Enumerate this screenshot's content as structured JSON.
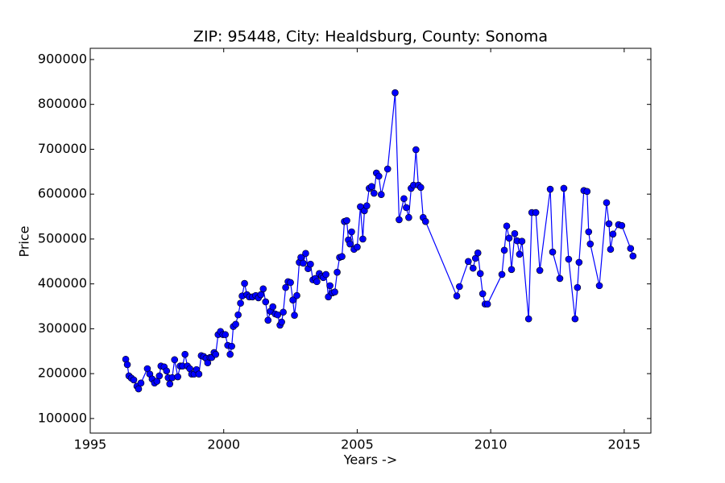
{
  "chart_data": {
    "type": "line",
    "title": "ZIP: 95448, City: Healdsburg, County: Sonoma",
    "x_label": "Years ->",
    "y_label": "Price",
    "xlim": [
      1995,
      2016
    ],
    "ylim": [
      67500,
      925000
    ],
    "xticks": [
      1995,
      2000,
      2005,
      2010,
      2015
    ],
    "yticks": [
      100000,
      200000,
      300000,
      400000,
      500000,
      600000,
      700000,
      800000,
      900000
    ],
    "grid": false,
    "markers": true,
    "x": [
      1996.33,
      1996.39,
      1996.45,
      1996.54,
      1996.63,
      1996.75,
      1996.81,
      1996.9,
      1997.14,
      1997.23,
      1997.32,
      1997.41,
      1997.5,
      1997.59,
      1997.65,
      1997.77,
      1997.86,
      1997.92,
      1997.98,
      1998.07,
      1998.16,
      1998.28,
      1998.37,
      1998.46,
      1998.55,
      1998.64,
      1998.73,
      1998.8,
      1998.89,
      1998.98,
      1999.07,
      1999.16,
      1999.25,
      1999.34,
      1999.4,
      1999.49,
      1999.55,
      1999.64,
      1999.7,
      1999.79,
      1999.88,
      1999.97,
      2000.06,
      2000.15,
      2000.24,
      2000.3,
      2000.36,
      2000.45,
      2000.54,
      2000.63,
      2000.69,
      2000.78,
      2000.87,
      2000.96,
      2001.08,
      2001.2,
      2001.3,
      2001.39,
      2001.48,
      2001.57,
      2001.66,
      2001.75,
      2001.84,
      2001.93,
      2002.02,
      2002.11,
      2002.17,
      2002.23,
      2002.32,
      2002.41,
      2002.5,
      2002.59,
      2002.65,
      2002.74,
      2002.83,
      2002.89,
      2002.98,
      2003.07,
      2003.16,
      2003.25,
      2003.34,
      2003.43,
      2003.49,
      2003.58,
      2003.67,
      2003.73,
      2003.83,
      2003.92,
      2003.98,
      2004.07,
      2004.16,
      2004.25,
      2004.34,
      2004.43,
      2004.52,
      2004.61,
      2004.67,
      2004.73,
      2004.79,
      2004.88,
      2005.0,
      2005.12,
      2005.21,
      2005.27,
      2005.36,
      2005.45,
      2005.54,
      2005.63,
      2005.72,
      2005.81,
      2005.9,
      2006.14,
      2006.42,
      2006.57,
      2006.75,
      2006.84,
      2006.93,
      2007.02,
      2007.11,
      2007.2,
      2007.29,
      2007.38,
      2007.47,
      2007.56,
      2008.73,
      2008.83,
      2009.16,
      2009.34,
      2009.43,
      2009.52,
      2009.61,
      2009.7,
      2009.79,
      2009.88,
      2010.42,
      2010.51,
      2010.6,
      2010.69,
      2010.78,
      2010.9,
      2010.99,
      2011.08,
      2011.17,
      2011.42,
      2011.54,
      2011.69,
      2011.84,
      2012.23,
      2012.32,
      2012.59,
      2012.74,
      2012.92,
      2013.16,
      2013.25,
      2013.31,
      2013.49,
      2013.61,
      2013.67,
      2013.73,
      2014.07,
      2014.34,
      2014.43,
      2014.49,
      2014.58,
      2014.79,
      2014.91,
      2015.24,
      2015.33
    ],
    "series": [
      {
        "color": "#0000ff",
        "values": [
          232000,
          220000,
          195000,
          190000,
          186000,
          172000,
          166000,
          179000,
          211000,
          199000,
          188000,
          179000,
          183000,
          195000,
          217000,
          215000,
          206000,
          191000,
          177000,
          191000,
          231000,
          193000,
          217000,
          217000,
          243000,
          217000,
          211000,
          199000,
          199000,
          209000,
          199000,
          240000,
          238000,
          234000,
          224000,
          236000,
          236000,
          247000,
          243000,
          287000,
          294000,
          287000,
          287000,
          263000,
          243000,
          261000,
          305000,
          310000,
          331000,
          357000,
          373000,
          401000,
          376000,
          371000,
          371000,
          374000,
          369000,
          376000,
          389000,
          360000,
          319000,
          339000,
          349000,
          333000,
          331000,
          308000,
          315000,
          337000,
          392000,
          405000,
          403000,
          364000,
          330000,
          374000,
          448000,
          459000,
          446000,
          468000,
          434000,
          444000,
          409000,
          412000,
          405000,
          423000,
          417000,
          414000,
          421000,
          371000,
          396000,
          380000,
          382000,
          426000,
          459000,
          461000,
          539000,
          541000,
          498000,
          489000,
          516000,
          477000,
          482000,
          572000,
          500000,
          563000,
          574000,
          613000,
          617000,
          602000,
          647000,
          640000,
          599000,
          656000,
          826000,
          543000,
          590000,
          570000,
          548000,
          613000,
          620000,
          699000,
          620000,
          615000,
          548000,
          539000,
          373000,
          394000,
          450000,
          435000,
          457000,
          469000,
          423000,
          378000,
          355000,
          355000,
          421000,
          475000,
          529000,
          502000,
          432000,
          512000,
          496000,
          466000,
          495000,
          322000,
          559000,
          559000,
          430000,
          611000,
          471000,
          412000,
          613000,
          455000,
          322000,
          392000,
          448000,
          608000,
          606000,
          516000,
          489000,
          396000,
          581000,
          534000,
          477000,
          511000,
          532000,
          530000,
          479000,
          462000
        ]
      }
    ]
  }
}
